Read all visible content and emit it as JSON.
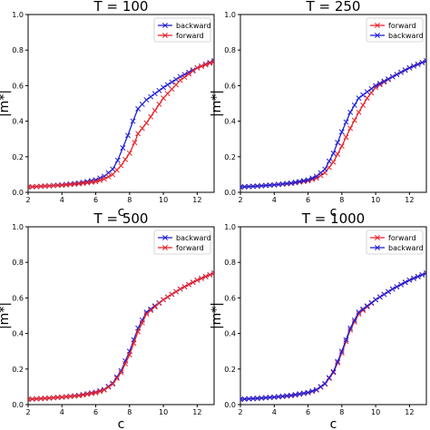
{
  "colors": {
    "forward": "#e8262b",
    "backward": "#1f1fd6"
  },
  "chart_data": [
    {
      "type": "line",
      "title": "T = 100",
      "xlabel": "c",
      "ylabel": "|m*|",
      "xlim": [
        2,
        13
      ],
      "ylim": [
        0,
        1.0
      ],
      "xticks": [
        2,
        4,
        6,
        8,
        10,
        12
      ],
      "yticks": [
        0.0,
        0.2,
        0.4,
        0.6,
        0.8,
        1.0
      ],
      "legend_position": "top-right",
      "series": [
        {
          "name": "backward",
          "key": "backward",
          "points": [
            [
              2,
              0.03
            ],
            [
              3,
              0.035
            ],
            [
              4,
              0.042
            ],
            [
              5,
              0.052
            ],
            [
              5.5,
              0.06
            ],
            [
              6,
              0.07
            ],
            [
              6.5,
              0.09
            ],
            [
              7,
              0.13
            ],
            [
              7.3,
              0.18
            ],
            [
              7.6,
              0.25
            ],
            [
              7.9,
              0.32
            ],
            [
              8.2,
              0.4
            ],
            [
              8.5,
              0.47
            ],
            [
              9,
              0.52
            ],
            [
              10,
              0.59
            ],
            [
              11,
              0.65
            ],
            [
              12,
              0.7
            ],
            [
              13,
              0.74
            ]
          ]
        },
        {
          "name": "forward",
          "key": "forward",
          "points": [
            [
              2,
              0.03
            ],
            [
              3,
              0.035
            ],
            [
              4,
              0.04
            ],
            [
              5,
              0.048
            ],
            [
              6,
              0.06
            ],
            [
              6.5,
              0.075
            ],
            [
              7,
              0.1
            ],
            [
              7.5,
              0.15
            ],
            [
              8,
              0.22
            ],
            [
              8.3,
              0.28
            ],
            [
              8.5,
              0.33
            ],
            [
              9,
              0.39
            ],
            [
              9.5,
              0.46
            ],
            [
              10,
              0.53
            ],
            [
              11,
              0.63
            ],
            [
              12,
              0.7
            ],
            [
              13,
              0.735
            ]
          ]
        }
      ]
    },
    {
      "type": "line",
      "title": "T = 250",
      "xlabel": "c",
      "ylabel": "|m*|",
      "xlim": [
        2,
        13
      ],
      "ylim": [
        0,
        1.0
      ],
      "xticks": [
        2,
        4,
        6,
        8,
        10,
        12
      ],
      "yticks": [
        0.0,
        0.2,
        0.4,
        0.6,
        0.8,
        1.0
      ],
      "legend_position": "top-right",
      "series": [
        {
          "name": "forward",
          "key": "forward",
          "points": [
            [
              2,
              0.03
            ],
            [
              3,
              0.035
            ],
            [
              4,
              0.042
            ],
            [
              5,
              0.05
            ],
            [
              6,
              0.065
            ],
            [
              6.5,
              0.08
            ],
            [
              7,
              0.11
            ],
            [
              7.5,
              0.17
            ],
            [
              8,
              0.26
            ],
            [
              8.5,
              0.36
            ],
            [
              9,
              0.45
            ],
            [
              9.5,
              0.53
            ],
            [
              10,
              0.59
            ],
            [
              11,
              0.65
            ],
            [
              12,
              0.7
            ],
            [
              13,
              0.74
            ]
          ]
        },
        {
          "name": "backward",
          "key": "backward",
          "points": [
            [
              2,
              0.03
            ],
            [
              3,
              0.035
            ],
            [
              4,
              0.042
            ],
            [
              5,
              0.052
            ],
            [
              6,
              0.07
            ],
            [
              6.5,
              0.09
            ],
            [
              7,
              0.13
            ],
            [
              7.5,
              0.22
            ],
            [
              8,
              0.34
            ],
            [
              8.5,
              0.45
            ],
            [
              9,
              0.53
            ],
            [
              10,
              0.6
            ],
            [
              11,
              0.65
            ],
            [
              12,
              0.7
            ],
            [
              13,
              0.74
            ]
          ]
        }
      ]
    },
    {
      "type": "line",
      "title": "T = 500",
      "xlabel": "c",
      "ylabel": "|m*|",
      "xlim": [
        2,
        13
      ],
      "ylim": [
        0,
        1.0
      ],
      "xticks": [
        2,
        4,
        6,
        8,
        10,
        12
      ],
      "yticks": [
        0.0,
        0.2,
        0.4,
        0.6,
        0.8,
        1.0
      ],
      "legend_position": "top-right",
      "series": [
        {
          "name": "backward",
          "key": "backward",
          "points": [
            [
              2,
              0.03
            ],
            [
              3,
              0.035
            ],
            [
              4,
              0.042
            ],
            [
              5,
              0.052
            ],
            [
              6,
              0.07
            ],
            [
              6.5,
              0.085
            ],
            [
              7,
              0.12
            ],
            [
              7.5,
              0.19
            ],
            [
              8,
              0.3
            ],
            [
              8.5,
              0.43
            ],
            [
              9,
              0.52
            ],
            [
              10,
              0.59
            ],
            [
              11,
              0.65
            ],
            [
              12,
              0.7
            ],
            [
              13,
              0.74
            ]
          ]
        },
        {
          "name": "forward",
          "key": "forward",
          "points": [
            [
              2,
              0.03
            ],
            [
              3,
              0.035
            ],
            [
              4,
              0.042
            ],
            [
              5,
              0.05
            ],
            [
              6,
              0.067
            ],
            [
              6.5,
              0.082
            ],
            [
              7,
              0.115
            ],
            [
              7.5,
              0.18
            ],
            [
              8,
              0.28
            ],
            [
              8.5,
              0.41
            ],
            [
              9,
              0.51
            ],
            [
              10,
              0.59
            ],
            [
              11,
              0.65
            ],
            [
              12,
              0.7
            ],
            [
              13,
              0.74
            ]
          ]
        }
      ]
    },
    {
      "type": "line",
      "title": "T = 1000",
      "xlabel": "c",
      "ylabel": "|m*|",
      "xlim": [
        2,
        13
      ],
      "ylim": [
        0,
        1.0
      ],
      "xticks": [
        2,
        4,
        6,
        8,
        10,
        12
      ],
      "yticks": [
        0.0,
        0.2,
        0.4,
        0.6,
        0.8,
        1.0
      ],
      "legend_position": "top-right",
      "series": [
        {
          "name": "forward",
          "key": "forward",
          "points": [
            [
              2,
              0.03
            ],
            [
              3,
              0.035
            ],
            [
              4,
              0.042
            ],
            [
              5,
              0.05
            ],
            [
              6,
              0.067
            ],
            [
              6.5,
              0.082
            ],
            [
              7,
              0.115
            ],
            [
              7.5,
              0.18
            ],
            [
              8,
              0.29
            ],
            [
              8.5,
              0.42
            ],
            [
              9,
              0.51
            ],
            [
              10,
              0.59
            ],
            [
              11,
              0.65
            ],
            [
              12,
              0.7
            ],
            [
              13,
              0.74
            ]
          ]
        },
        {
          "name": "backward",
          "key": "backward",
          "points": [
            [
              2,
              0.03
            ],
            [
              3,
              0.035
            ],
            [
              4,
              0.042
            ],
            [
              5,
              0.052
            ],
            [
              6,
              0.068
            ],
            [
              6.5,
              0.084
            ],
            [
              7,
              0.118
            ],
            [
              7.5,
              0.185
            ],
            [
              8,
              0.3
            ],
            [
              8.5,
              0.43
            ],
            [
              9,
              0.52
            ],
            [
              10,
              0.59
            ],
            [
              11,
              0.65
            ],
            [
              12,
              0.7
            ],
            [
              13,
              0.74
            ]
          ]
        }
      ]
    }
  ]
}
